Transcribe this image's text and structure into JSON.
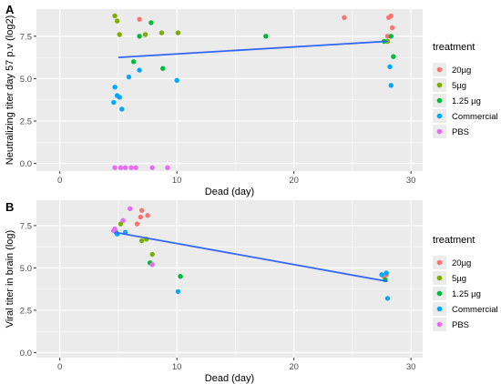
{
  "colors": {
    "20µg": "#F8766D",
    "5µg": "#7CAE00",
    "1.25 µg": "#00BA38",
    "Commercial": "#00A9FF",
    "PBS": "#E76BF3",
    "fit_line": "#3366FF",
    "panel_bg": "#EBEBEB",
    "grid": "#FFFFFF"
  },
  "chart_data": [
    {
      "type": "scatter",
      "panel_label": "A",
      "xlabel": "Dead (day)",
      "ylabel": "Neutralizing titer day 57 p.v (log2)",
      "xlim": [
        -2,
        31
      ],
      "ylim": [
        -0.45,
        9.1
      ],
      "xticks": [
        0,
        10,
        20,
        30
      ],
      "yticks": [
        0.0,
        2.5,
        5.0,
        7.5
      ],
      "ytick_labels": [
        "0.0",
        "2.5",
        "5.0",
        "7.5"
      ],
      "grid": true,
      "legend": {
        "title": "treatment",
        "position": "right",
        "entries": [
          "20µg",
          "5µg",
          "1.25 µg",
          "Commercial",
          "PBS"
        ]
      },
      "fit_line": {
        "x": [
          5,
          28
        ],
        "y": [
          6.25,
          7.2
        ]
      },
      "series": [
        {
          "name": "20µg",
          "x": [
            6.8,
            24.3,
            28.0,
            28.1,
            28.3,
            28.4
          ],
          "y": [
            8.5,
            8.6,
            7.5,
            8.6,
            8.7,
            8.0
          ]
        },
        {
          "name": "5µg",
          "x": [
            4.7,
            4.9,
            5.1,
            7.3,
            8.7,
            10.1,
            28.0
          ],
          "y": [
            8.7,
            8.4,
            7.6,
            7.6,
            7.7,
            7.7,
            7.2
          ]
        },
        {
          "name": "1.25 µg",
          "x": [
            6.3,
            6.8,
            7.8,
            8.8,
            17.6,
            27.7,
            28.3,
            28.5
          ],
          "y": [
            6.0,
            7.5,
            8.3,
            5.6,
            7.5,
            7.2,
            7.5,
            6.3
          ]
        },
        {
          "name": "Commercial",
          "x": [
            4.6,
            4.7,
            4.9,
            5.1,
            5.3,
            5.9,
            6.8,
            10.0,
            28.2,
            28.3
          ],
          "y": [
            3.6,
            4.5,
            4.0,
            3.9,
            3.2,
            5.1,
            5.5,
            4.9,
            5.7,
            4.6
          ]
        },
        {
          "name": "PBS",
          "x": [
            4.7,
            5.2,
            5.6,
            6.1,
            6.5,
            7.9,
            9.2
          ],
          "y": [
            -0.25,
            -0.25,
            -0.25,
            -0.25,
            -0.25,
            -0.25,
            -0.25
          ]
        }
      ]
    },
    {
      "type": "scatter",
      "panel_label": "B",
      "xlabel": "Dead (day)",
      "ylabel": "Viral titer in brain (log)",
      "xlim": [
        -2,
        31
      ],
      "ylim": [
        -0.3,
        9.0
      ],
      "xticks": [
        0,
        10,
        20,
        30
      ],
      "yticks": [
        0.0,
        2.5,
        5.0,
        7.5
      ],
      "ytick_labels": [
        "0.0",
        "2.5",
        "5.0",
        "7.5"
      ],
      "grid": true,
      "legend": {
        "title": "treatment",
        "position": "right",
        "entries": [
          "20µg",
          "5µg",
          "1.25 µg",
          "Commercial",
          "PBS"
        ]
      },
      "fit_line": {
        "x": [
          4.7,
          28
        ],
        "y": [
          7.1,
          4.2
        ]
      },
      "series": [
        {
          "name": "20µg",
          "x": [
            6.6,
            6.9,
            7.0,
            7.5,
            27.7,
            27.9
          ],
          "y": [
            7.6,
            8.0,
            8.4,
            8.1,
            4.5,
            4.6
          ]
        },
        {
          "name": "5µg",
          "x": [
            5.2,
            7.0,
            7.4,
            7.9
          ],
          "y": [
            7.6,
            6.6,
            6.7,
            5.8
          ]
        },
        {
          "name": "1.25 µg",
          "x": [
            4.8,
            7.7,
            10.3,
            27.8
          ],
          "y": [
            7.1,
            5.3,
            4.5,
            4.3
          ]
        },
        {
          "name": "Commercial",
          "x": [
            4.9,
            5.6,
            10.1,
            27.5,
            27.9,
            28.0
          ],
          "y": [
            7.0,
            7.1,
            3.6,
            4.6,
            4.7,
            3.2
          ]
        },
        {
          "name": "PBS",
          "x": [
            4.6,
            4.7,
            5.4,
            6.0,
            7.9
          ],
          "y": [
            7.2,
            7.3,
            7.8,
            8.5,
            5.2
          ]
        }
      ]
    }
  ]
}
